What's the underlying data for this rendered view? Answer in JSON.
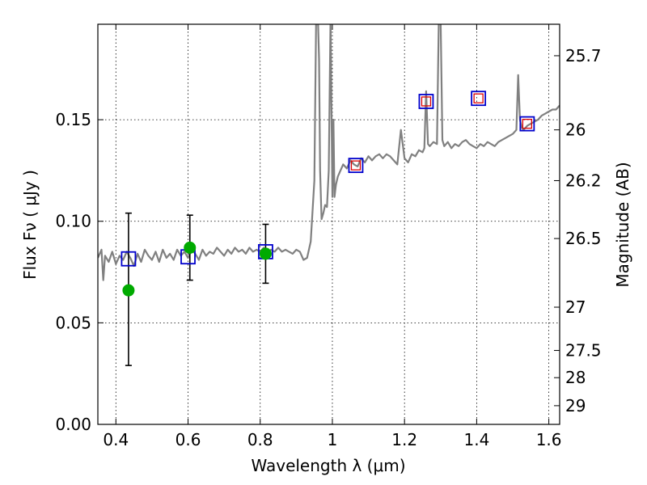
{
  "chart_data": {
    "type": "scatter",
    "xlabel": "Wavelength  λ (μm)",
    "ylabel_left": "Flux  Fν  ( μJy )",
    "ylabel_right": "Magnitude (AB)",
    "xlim": [
      0.35,
      1.63
    ],
    "ylim": [
      0.0,
      0.197
    ],
    "grid": true,
    "x_ticks": [
      {
        "value": 0.4,
        "label": "0.4"
      },
      {
        "value": 0.6,
        "label": "0.6"
      },
      {
        "value": 0.8,
        "label": "0.8"
      },
      {
        "value": 1.0,
        "label": "1"
      },
      {
        "value": 1.2,
        "label": "1.2"
      },
      {
        "value": 1.4,
        "label": "1.4"
      },
      {
        "value": 1.6,
        "label": "1.6"
      }
    ],
    "y_ticks_left": [
      {
        "value": 0.0,
        "label": "0.00"
      },
      {
        "value": 0.05,
        "label": "0.05"
      },
      {
        "value": 0.1,
        "label": "0.10"
      },
      {
        "value": 0.15,
        "label": "0.15"
      }
    ],
    "y_ticks_right": [
      {
        "flux": 0.1815,
        "label": "25.7"
      },
      {
        "flux": 0.145,
        "label": "26"
      },
      {
        "flux": 0.12,
        "label": "26.2"
      },
      {
        "flux": 0.0915,
        "label": "26.5"
      },
      {
        "flux": 0.0577,
        "label": "27"
      },
      {
        "flux": 0.0364,
        "label": "27.5"
      },
      {
        "flux": 0.023,
        "label": "28"
      },
      {
        "flux": 0.0092,
        "label": "29"
      }
    ],
    "series": [
      {
        "kind": "spectrum",
        "color": "#808080",
        "x": [
          0.35,
          0.36,
          0.365,
          0.37,
          0.38,
          0.39,
          0.4,
          0.41,
          0.42,
          0.43,
          0.44,
          0.45,
          0.46,
          0.47,
          0.48,
          0.49,
          0.5,
          0.51,
          0.52,
          0.53,
          0.54,
          0.55,
          0.56,
          0.57,
          0.58,
          0.59,
          0.6,
          0.61,
          0.62,
          0.63,
          0.64,
          0.65,
          0.66,
          0.67,
          0.68,
          0.69,
          0.7,
          0.71,
          0.72,
          0.73,
          0.74,
          0.75,
          0.76,
          0.77,
          0.78,
          0.79,
          0.8,
          0.81,
          0.82,
          0.83,
          0.84,
          0.85,
          0.86,
          0.87,
          0.88,
          0.89,
          0.9,
          0.91,
          0.92,
          0.93,
          0.94,
          0.95,
          0.955,
          0.96,
          0.963,
          0.966,
          0.97,
          0.975,
          0.98,
          0.985,
          0.99,
          0.995,
          1.0,
          1.003,
          1.006,
          1.01,
          1.015,
          1.02,
          1.03,
          1.04,
          1.05,
          1.06,
          1.07,
          1.08,
          1.09,
          1.1,
          1.11,
          1.12,
          1.13,
          1.14,
          1.15,
          1.16,
          1.17,
          1.18,
          1.19,
          1.2,
          1.21,
          1.22,
          1.23,
          1.24,
          1.25,
          1.255,
          1.26,
          1.265,
          1.27,
          1.28,
          1.29,
          1.295,
          1.3,
          1.305,
          1.31,
          1.32,
          1.33,
          1.34,
          1.35,
          1.36,
          1.37,
          1.38,
          1.39,
          1.4,
          1.41,
          1.42,
          1.43,
          1.44,
          1.45,
          1.46,
          1.47,
          1.48,
          1.49,
          1.5,
          1.51,
          1.515,
          1.52,
          1.525,
          1.53,
          1.54,
          1.55,
          1.56,
          1.57,
          1.58,
          1.59,
          1.6,
          1.61,
          1.62,
          1.63
        ],
        "y": [
          0.082,
          0.086,
          0.071,
          0.083,
          0.08,
          0.085,
          0.079,
          0.083,
          0.081,
          0.085,
          0.082,
          0.078,
          0.084,
          0.08,
          0.086,
          0.083,
          0.081,
          0.085,
          0.08,
          0.086,
          0.082,
          0.084,
          0.081,
          0.086,
          0.083,
          0.085,
          0.082,
          0.086,
          0.084,
          0.081,
          0.086,
          0.083,
          0.085,
          0.084,
          0.087,
          0.085,
          0.083,
          0.086,
          0.084,
          0.087,
          0.085,
          0.086,
          0.084,
          0.087,
          0.085,
          0.086,
          0.085,
          0.087,
          0.084,
          0.086,
          0.085,
          0.087,
          0.085,
          0.086,
          0.085,
          0.084,
          0.086,
          0.085,
          0.081,
          0.082,
          0.09,
          0.12,
          0.2,
          0.2,
          0.18,
          0.125,
          0.101,
          0.104,
          0.108,
          0.107,
          0.125,
          0.2,
          0.112,
          0.15,
          0.112,
          0.118,
          0.122,
          0.124,
          0.128,
          0.126,
          0.13,
          0.128,
          0.127,
          0.131,
          0.129,
          0.132,
          0.13,
          0.132,
          0.133,
          0.131,
          0.133,
          0.132,
          0.13,
          0.128,
          0.145,
          0.131,
          0.129,
          0.133,
          0.132,
          0.135,
          0.134,
          0.136,
          0.164,
          0.138,
          0.137,
          0.139,
          0.138,
          0.2,
          0.2,
          0.14,
          0.137,
          0.139,
          0.136,
          0.138,
          0.137,
          0.139,
          0.14,
          0.138,
          0.137,
          0.136,
          0.138,
          0.137,
          0.139,
          0.138,
          0.137,
          0.139,
          0.14,
          0.141,
          0.142,
          0.143,
          0.145,
          0.172,
          0.15,
          0.146,
          0.145,
          0.147,
          0.148,
          0.149,
          0.15,
          0.152,
          0.153,
          0.154,
          0.155,
          0.155,
          0.157
        ]
      },
      {
        "kind": "model-photometry",
        "marker": "square",
        "color": "#0000cc",
        "x": [
          0.435,
          0.6,
          0.815,
          1.065,
          1.26,
          1.405,
          1.54
        ],
        "y": [
          0.0815,
          0.0825,
          0.085,
          0.1275,
          0.159,
          0.1605,
          0.148
        ]
      },
      {
        "kind": "detected-photometry",
        "marker": "square",
        "color": "#dd0000",
        "x": [
          1.065,
          1.26,
          1.405,
          1.54
        ],
        "y": [
          0.1275,
          0.159,
          0.1605,
          0.148
        ]
      },
      {
        "kind": "measured-photometry",
        "marker": "circle",
        "color": "#00aa00",
        "x": [
          0.435,
          0.605,
          0.815
        ],
        "y": [
          0.066,
          0.087,
          0.084
        ],
        "yerr_low": [
          0.029,
          0.071,
          0.0695
        ],
        "yerr_high": [
          0.104,
          0.103,
          0.0985
        ]
      }
    ]
  }
}
